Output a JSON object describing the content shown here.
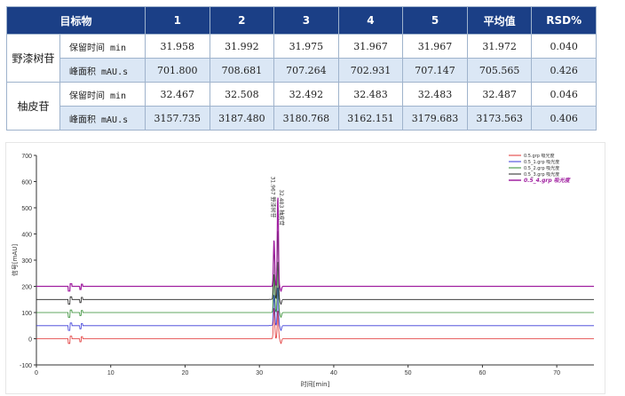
{
  "table": {
    "headers": [
      "目标物",
      "1",
      "2",
      "3",
      "4",
      "5",
      "平均值",
      "RSD%"
    ],
    "groups": [
      {
        "name": "野漆树苷",
        "rows": [
          {
            "metric": "保留时间 min",
            "values": [
              "31.958",
              "31.992",
              "31.975",
              "31.967",
              "31.967",
              "31.972",
              "0.040"
            ]
          },
          {
            "metric": "峰面积 mAU.s",
            "values": [
              "701.800",
              "708.681",
              "707.264",
              "702.931",
              "707.147",
              "705.565",
              "0.426"
            ]
          }
        ]
      },
      {
        "name": "柚皮苷",
        "rows": [
          {
            "metric": "保留时间 min",
            "values": [
              "32.467",
              "32.508",
              "32.492",
              "32.483",
              "32.483",
              "32.487",
              "0.046"
            ]
          },
          {
            "metric": "峰面积 mAU.s",
            "values": [
              "3157.735",
              "3187.480",
              "3180.768",
              "3162.151",
              "3179.683",
              "3173.563",
              "0.406"
            ]
          }
        ]
      }
    ]
  },
  "chart_data": {
    "type": "line",
    "xlabel": "时间[min]",
    "ylabel": "信号[mAU]",
    "xlim": [
      0,
      75
    ],
    "ylim": [
      -100,
      700
    ],
    "xticks": [
      0,
      10,
      20,
      30,
      40,
      50,
      60,
      70
    ],
    "yticks": [
      -100,
      0,
      100,
      200,
      300,
      400,
      500,
      600,
      700
    ],
    "legend_position": "top-right",
    "grid": false,
    "series": [
      {
        "name": "0.5.grp 吸光度",
        "color": "#e03030",
        "offset": 0,
        "peak1": 120,
        "peak2": 110,
        "bold": false
      },
      {
        "name": "0.5_1.grp 吸光度",
        "color": "#3a3ad8",
        "offset": 50,
        "peak1": 120,
        "peak2": 150,
        "bold": false
      },
      {
        "name": "0.5_2.grp 吸光度",
        "color": "#2e8a2e",
        "offset": 100,
        "peak1": 150,
        "peak2": 200,
        "bold": false
      },
      {
        "name": "0.5_3.grp 吸光度",
        "color": "#222222",
        "offset": 150,
        "peak1": 200,
        "peak2": 270,
        "bold": false
      },
      {
        "name": "0.5_4.grp 吸光度",
        "color": "#a020a0",
        "offset": 200,
        "peak1": 180,
        "peak2": 350,
        "bold": true
      }
    ],
    "peaks": [
      {
        "label": "野漆树苷",
        "rt_label": "31.967",
        "x": 31.97
      },
      {
        "label": "柚皮苷",
        "rt_label": "32.483",
        "x": 32.48
      }
    ]
  }
}
